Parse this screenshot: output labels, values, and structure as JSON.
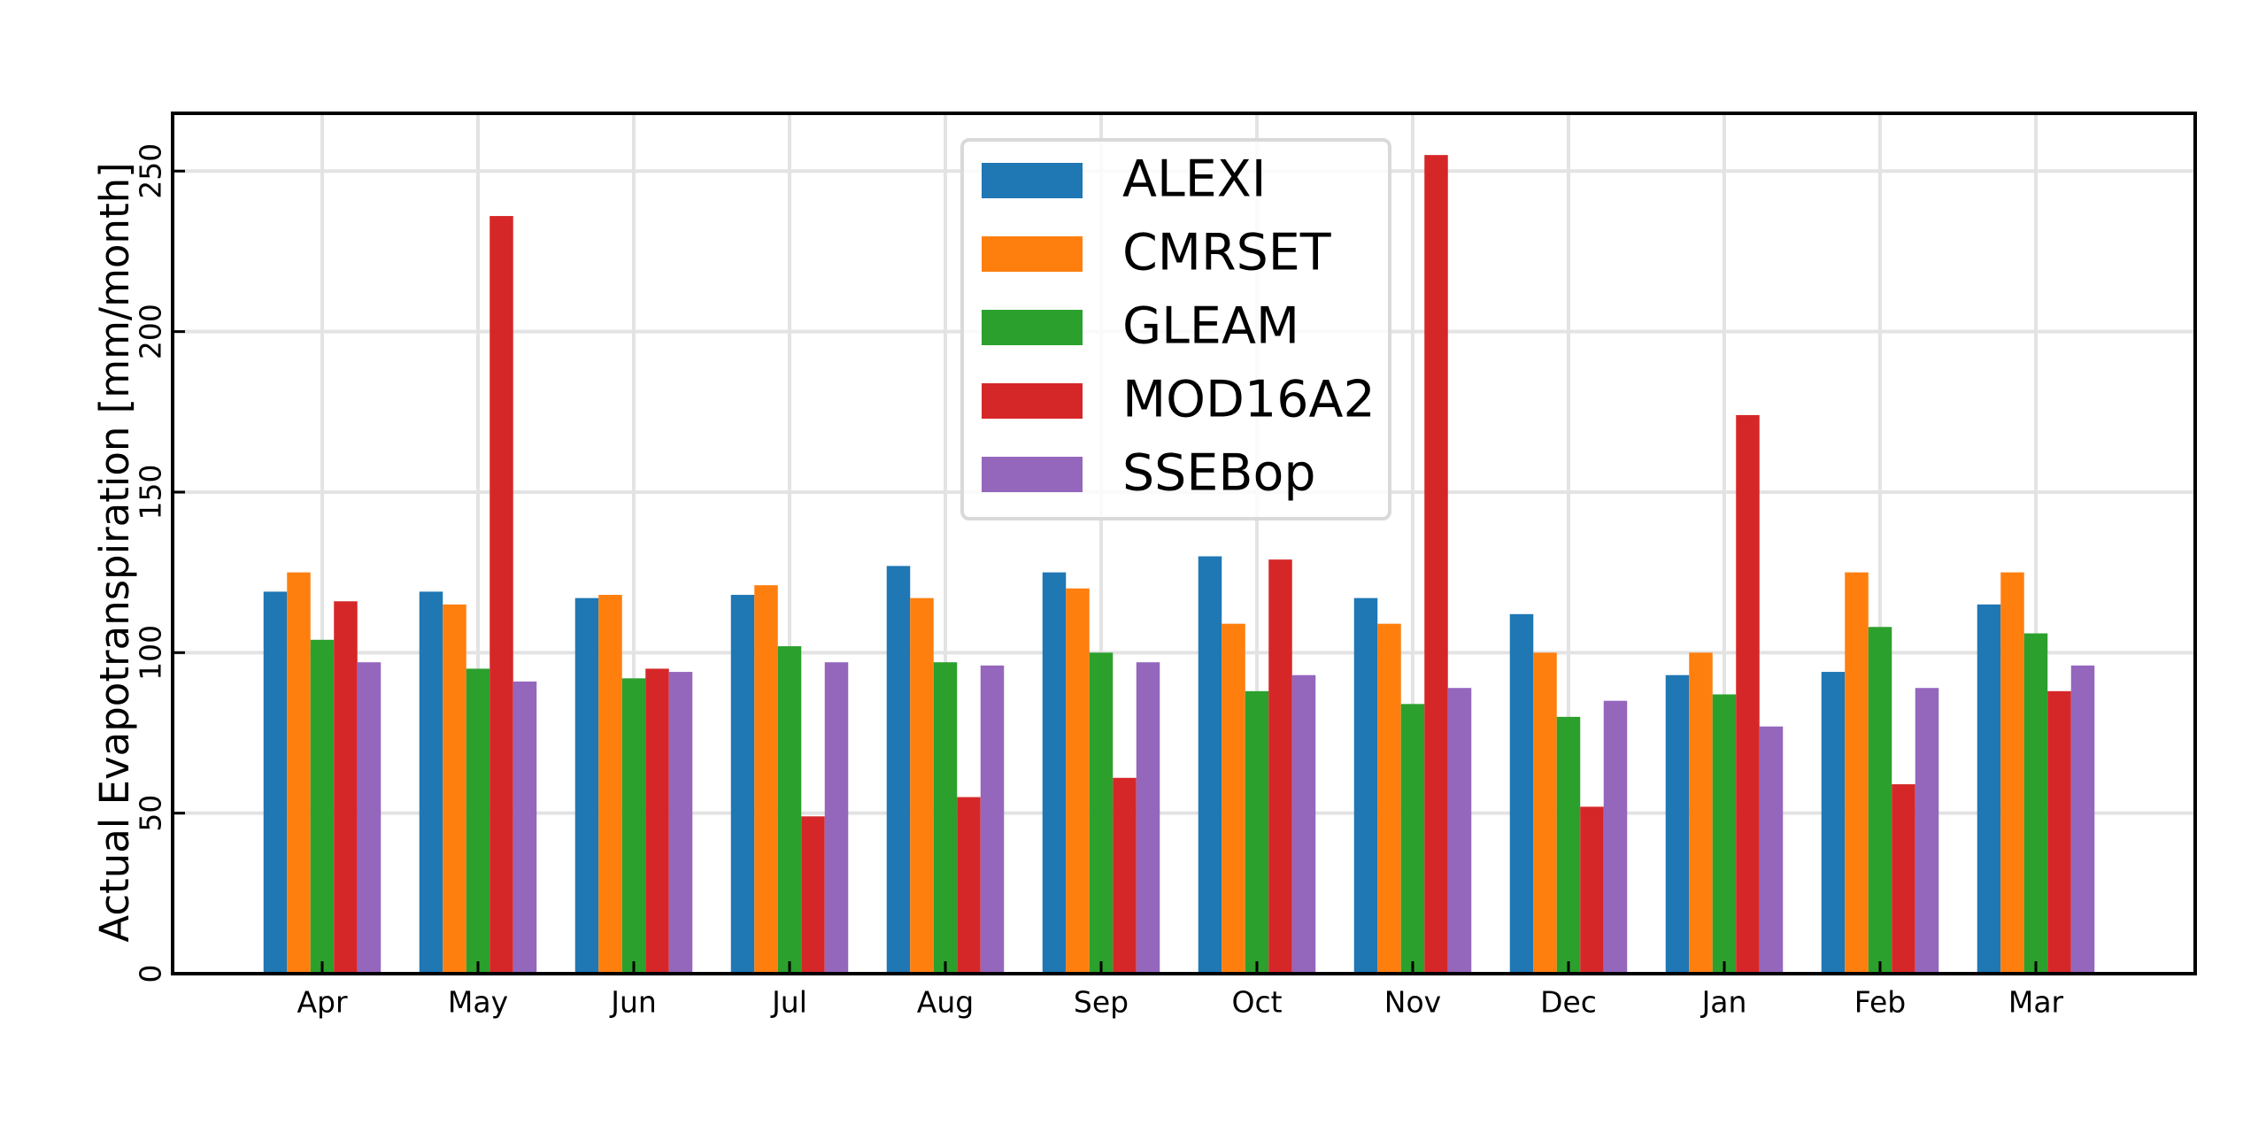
{
  "chart_data": {
    "type": "bar",
    "title": "",
    "xlabel": "",
    "ylabel": "Actual Evapotranspiration [mm/month]",
    "ylim": [
      0,
      268
    ],
    "yticks": [
      0,
      50,
      100,
      150,
      200,
      250
    ],
    "grid": true,
    "legend_position": "top-center",
    "categories": [
      "Apr",
      "May",
      "Jun",
      "Jul",
      "Aug",
      "Sep",
      "Oct",
      "Nov",
      "Dec",
      "Jan",
      "Feb",
      "Mar"
    ],
    "series": [
      {
        "name": "ALEXI",
        "color": "#1f77b4",
        "values": [
          119,
          119,
          117,
          118,
          127,
          125,
          130,
          117,
          112,
          93,
          94,
          115
        ]
      },
      {
        "name": "CMRSET",
        "color": "#ff7f0e",
        "values": [
          125,
          115,
          118,
          121,
          117,
          120,
          109,
          109,
          100,
          100,
          125,
          125
        ]
      },
      {
        "name": "GLEAM",
        "color": "#2ca02c",
        "values": [
          104,
          95,
          92,
          102,
          97,
          100,
          88,
          84,
          80,
          87,
          108,
          106
        ]
      },
      {
        "name": "MOD16A2",
        "color": "#d62728",
        "values": [
          116,
          236,
          95,
          49,
          55,
          61,
          129,
          255,
          52,
          174,
          59,
          88
        ]
      },
      {
        "name": "SSEBop",
        "color": "#9467bd",
        "values": [
          97,
          91,
          94,
          97,
          96,
          97,
          93,
          89,
          85,
          77,
          89,
          96
        ]
      }
    ]
  }
}
